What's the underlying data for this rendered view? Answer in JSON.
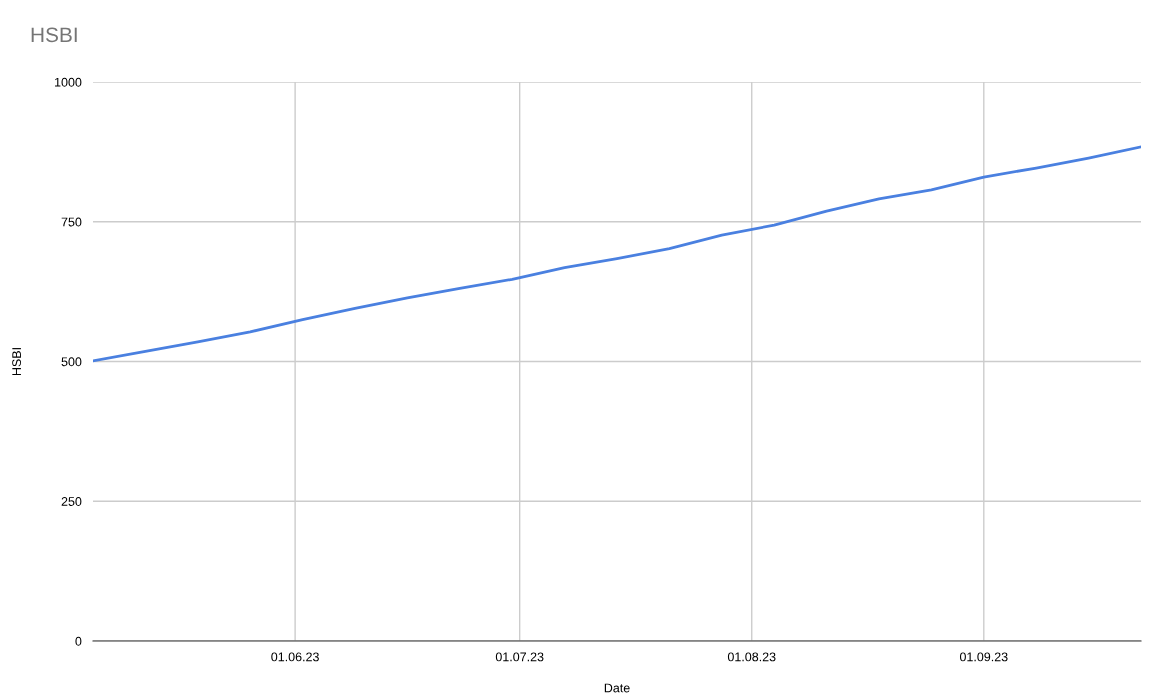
{
  "chart_data": {
    "type": "line",
    "title": "HSBI",
    "xlabel": "Date",
    "ylabel": "HSBI",
    "x": [
      "2023-05-05",
      "2023-05-12",
      "2023-05-19",
      "2023-05-26",
      "2023-06-02",
      "2023-06-09",
      "2023-06-16",
      "2023-06-23",
      "2023-06-30",
      "2023-07-07",
      "2023-07-14",
      "2023-07-21",
      "2023-07-28",
      "2023-08-04",
      "2023-08-11",
      "2023-08-18",
      "2023-08-25",
      "2023-09-01",
      "2023-09-08",
      "2023-09-15",
      "2023-09-22"
    ],
    "series": [
      {
        "color": "#4a80e0",
        "values": [
          501,
          518,
          535,
          553,
          575,
          595,
          614,
          631,
          647,
          668,
          684,
          702,
          726,
          744,
          769,
          791,
          807,
          830,
          846,
          864,
          884
        ]
      }
    ],
    "xlim": [
      "2023-05-05",
      "2023-09-22"
    ],
    "xticks": [
      {
        "value": "2023-06-01",
        "label": "01.06.23"
      },
      {
        "value": "2023-07-01",
        "label": "01.07.23"
      },
      {
        "value": "2023-08-01",
        "label": "01.08.23"
      },
      {
        "value": "2023-09-01",
        "label": "01.09.23"
      }
    ],
    "ylim": [
      0,
      1000
    ],
    "yticks": [
      0,
      250,
      500,
      750,
      1000
    ],
    "grid": true,
    "legend": false
  }
}
